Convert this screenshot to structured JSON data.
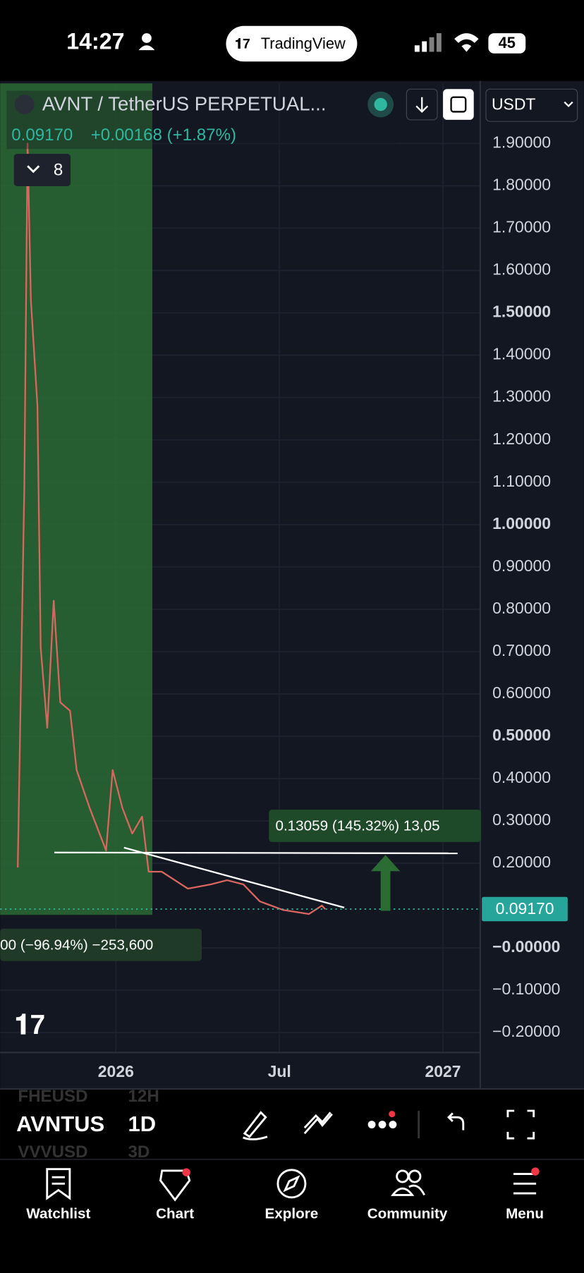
{
  "status_bar": {
    "time": "14:27",
    "app": "TradingView",
    "battery": "45"
  },
  "header": {
    "symbol": "AVNT / TetherUS PERPETUAL...",
    "currency": "USDT",
    "last": "0.09170",
    "change": "+0.00168 (+1.87%)",
    "indicators": "8"
  },
  "chart_data": {
    "type": "line",
    "x": [
      2025.7,
      2025.72,
      2025.73,
      2025.74,
      2025.76,
      2025.77,
      2025.79,
      2025.81,
      2025.83,
      2025.86,
      2025.88,
      2025.92,
      2025.97,
      2025.99,
      2026.02,
      2026.05,
      2026.08,
      2026.1,
      2026.14,
      2026.22,
      2026.29,
      2026.34,
      2026.39,
      2026.44,
      2026.51,
      2026.59,
      2026.63,
      2026.64
    ],
    "series": [
      {
        "name": "AVNTUSDT.P",
        "color": "#d9675f",
        "values": [
          0.19,
          1.09,
          1.9,
          1.53,
          1.28,
          0.71,
          0.52,
          0.82,
          0.58,
          0.56,
          0.42,
          0.33,
          0.23,
          0.42,
          0.33,
          0.27,
          0.31,
          0.18,
          0.18,
          0.14,
          0.15,
          0.16,
          0.15,
          0.11,
          0.09,
          0.08,
          0.1,
          0.0917
        ]
      }
    ],
    "xlim": [
      2025.646,
      2027.114
    ],
    "xticks": [
      2026,
      {
        "value": 2026.5,
        "label": "Jul"
      },
      2027
    ],
    "ylim": [
      -0.247,
      2.042
    ],
    "yticks": [
      {
        "value": 1.9,
        "label": "1.90000"
      },
      {
        "value": 1.8,
        "label": "1.80000"
      },
      {
        "value": 1.7,
        "label": "1.70000"
      },
      {
        "value": 1.6,
        "label": "1.60000"
      },
      {
        "value": 1.5,
        "label": "1.50000"
      },
      {
        "value": 1.4,
        "label": "1.40000"
      },
      {
        "value": 1.3,
        "label": "1.30000"
      },
      {
        "value": 1.2,
        "label": "1.20000"
      },
      {
        "value": 1.1,
        "label": "1.10000"
      },
      {
        "value": 1.0,
        "label": "1.00000"
      },
      {
        "value": 0.9,
        "label": "0.90000"
      },
      {
        "value": 0.8,
        "label": "0.80000"
      },
      {
        "value": 0.7,
        "label": "0.70000"
      },
      {
        "value": 0.6,
        "label": "0.60000"
      },
      {
        "value": 0.5,
        "label": "0.50000"
      },
      {
        "value": 0.4,
        "label": "0.40000"
      },
      {
        "value": 0.3,
        "label": "0.30000"
      },
      {
        "value": 0.2,
        "label": "0.20000"
      },
      {
        "value": 0,
        "label": "−0.00000"
      },
      {
        "value": -0.1,
        "label": "−0.10000"
      },
      {
        "value": -0.2,
        "label": "−0.20000"
      }
    ],
    "last_price": {
      "value": 0.0917,
      "label": "0.09170"
    },
    "annotations": [
      "0.13059 (145.32%) 13,05",
      "00 (−96.94%) −253,600"
    ],
    "grid": true
  },
  "toolbar": {
    "symbol": "AVNTUS",
    "interval": "1D",
    "ghost_symbols": [
      "FHEUSD",
      "VVVUSD"
    ],
    "ghost_intervals": [
      "12H",
      "3D"
    ]
  },
  "tabs": [
    "Watchlist",
    "Chart",
    "Explore",
    "Community",
    "Menu"
  ]
}
